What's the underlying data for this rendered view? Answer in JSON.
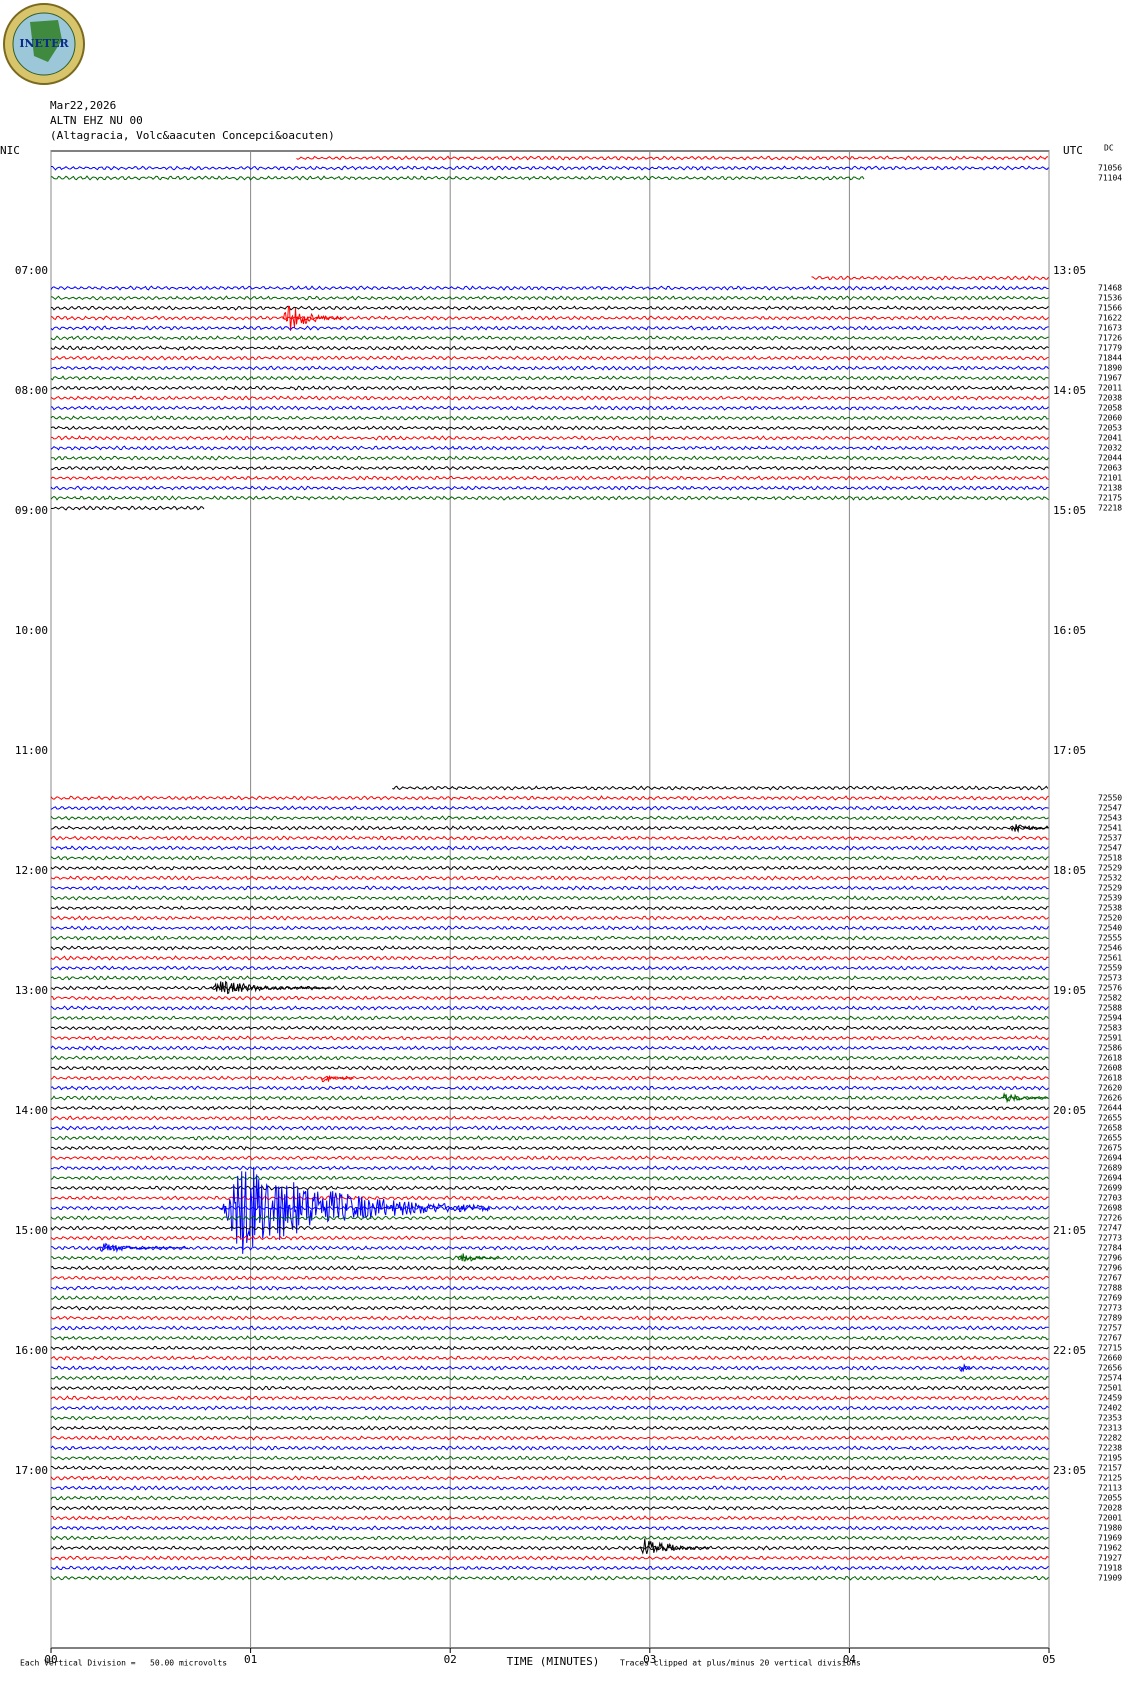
{
  "chart_data": {
    "type": "helicorder",
    "logo_text": "INETER",
    "date": "Mar22,2026",
    "station": "ALTN EHZ NU 00",
    "location": "(Altagracia, Volc&aacuten Concepci&oacuten)",
    "left_zone": "NIC",
    "right_zone": "UTC",
    "dc_header": "DC",
    "x_label": "TIME (MINUTES)",
    "scale_note": "Each Vertical Division =   50.00 microvolts",
    "clip_note": "Traces clipped at plus/minus 20 vertical divisions",
    "xlim": [
      0,
      5
    ],
    "xticks": [
      {
        "value": 0,
        "label": "00"
      },
      {
        "value": 1,
        "label": "01"
      },
      {
        "value": 2,
        "label": "02"
      },
      {
        "value": 3,
        "label": "03"
      },
      {
        "value": 4,
        "label": "04"
      },
      {
        "value": 5,
        "label": "05"
      }
    ],
    "grid": true,
    "colors": [
      "#ff0000",
      "#0000ff",
      "#006400",
      "#000000"
    ],
    "hours": [
      {
        "nic": "07:00",
        "utc": "13:05"
      },
      {
        "nic": "08:00",
        "utc": "14:05"
      },
      {
        "nic": "09:00",
        "utc": "15:05"
      },
      {
        "nic": "10:00",
        "utc": "16:05"
      },
      {
        "nic": "11:00",
        "utc": "17:05"
      },
      {
        "nic": "12:00",
        "utc": "18:05"
      },
      {
        "nic": "13:00",
        "utc": "19:05"
      },
      {
        "nic": "14:00",
        "utc": "20:05"
      },
      {
        "nic": "15:00",
        "utc": "21:05"
      },
      {
        "nic": "16:00",
        "utc": "22:05"
      },
      {
        "nic": "17:00",
        "utc": "23:05"
      }
    ],
    "traces": [
      {
        "xrange": [
          1.23,
          5
        ]
      },
      {
        "dc": 71056
      },
      {
        "dc": 71104,
        "xrange": [
          0,
          4.08
        ]
      },
      null,
      null,
      null,
      null,
      null,
      null,
      null,
      null,
      null,
      {
        "xrange": [
          3.81,
          5
        ]
      },
      {
        "dc": 71468
      },
      {
        "dc": 71536
      },
      {
        "dc": 71566
      },
      {
        "dc": 71622,
        "events": [
          {
            "start": 1.16,
            "end": 1.47,
            "amplitude": 1.5
          }
        ]
      },
      {
        "dc": 71673
      },
      {
        "dc": 71726
      },
      {
        "dc": 71779
      },
      {
        "dc": 71844
      },
      {
        "dc": 71890
      },
      {
        "dc": 71967
      },
      {
        "dc": 72011
      },
      {
        "dc": 72038
      },
      {
        "dc": 72058
      },
      {
        "dc": 72060
      },
      {
        "dc": 72053
      },
      {
        "dc": 72041
      },
      {
        "dc": 72032
      },
      {
        "dc": 72044
      },
      {
        "dc": 72063
      },
      {
        "dc": 72101
      },
      {
        "dc": 72138
      },
      {
        "dc": 72175
      },
      {
        "dc": 72218,
        "xrange": [
          0,
          0.77
        ]
      },
      null,
      null,
      null,
      null,
      null,
      null,
      null,
      null,
      null,
      null,
      null,
      null,
      null,
      null,
      null,
      null,
      null,
      null,
      null,
      null,
      null,
      null,
      null,
      null,
      null,
      null,
      null,
      {
        "xrange": [
          1.71,
          5
        ]
      },
      {
        "dc": 72550
      },
      {
        "dc": 72547
      },
      {
        "dc": 72543
      },
      {
        "dc": 72541,
        "events": [
          {
            "start": 4.81,
            "end": 5,
            "amplitude": 0.8
          }
        ]
      },
      {
        "dc": 72537
      },
      {
        "dc": 72547
      },
      {
        "dc": 72518
      },
      {
        "dc": 72529
      },
      {
        "dc": 72532
      },
      {
        "dc": 72529
      },
      {
        "dc": 72539
      },
      {
        "dc": 72538
      },
      {
        "dc": 72520
      },
      {
        "dc": 72540
      },
      {
        "dc": 72555
      },
      {
        "dc": 72546
      },
      {
        "dc": 72561
      },
      {
        "dc": 72559
      },
      {
        "dc": 72573
      },
      {
        "dc": 72576,
        "events": [
          {
            "start": 0.8,
            "end": 1.4,
            "amplitude": 0.8
          }
        ]
      },
      {
        "dc": 72582
      },
      {
        "dc": 72588
      },
      {
        "dc": 72594
      },
      {
        "dc": 72583
      },
      {
        "dc": 72591
      },
      {
        "dc": 72586
      },
      {
        "dc": 72618
      },
      {
        "dc": 72608
      },
      {
        "dc": 72618,
        "events": [
          {
            "start": 1.35,
            "end": 1.52,
            "amplitude": 0.6
          }
        ]
      },
      {
        "dc": 72620
      },
      {
        "dc": 72626,
        "events": [
          {
            "start": 4.76,
            "end": 5,
            "amplitude": 0.6
          }
        ]
      },
      {
        "dc": 72644
      },
      {
        "dc": 72655
      },
      {
        "dc": 72658
      },
      {
        "dc": 72655
      },
      {
        "dc": 72675
      },
      {
        "dc": 72694
      },
      {
        "dc": 72689
      },
      {
        "dc": 72694
      },
      {
        "dc": 72699
      },
      {
        "dc": 72703
      },
      {
        "dc": 72698,
        "events": [
          {
            "start": 0.85,
            "end": 2.2,
            "amplitude": 5
          }
        ]
      },
      {
        "dc": 72726
      },
      {
        "dc": 72747
      },
      {
        "dc": 72773
      },
      {
        "dc": 72784,
        "events": [
          {
            "start": 0.23,
            "end": 0.69,
            "amplitude": 0.5
          }
        ]
      },
      {
        "dc": 72796,
        "events": [
          {
            "start": 2.04,
            "end": 2.25,
            "amplitude": 0.6
          }
        ]
      },
      {
        "dc": 72796
      },
      {
        "dc": 72767
      },
      {
        "dc": 72788
      },
      {
        "dc": 72769
      },
      {
        "dc": 72773
      },
      {
        "dc": 72789
      },
      {
        "dc": 72757
      },
      {
        "dc": 72767
      },
      {
        "dc": 72715
      },
      {
        "dc": 72660
      },
      {
        "dc": 72656,
        "events": [
          {
            "start": 4.55,
            "end": 4.62,
            "amplitude": 1
          }
        ]
      },
      {
        "dc": 72574
      },
      {
        "dc": 72501
      },
      {
        "dc": 72459
      },
      {
        "dc": 72402
      },
      {
        "dc": 72353
      },
      {
        "dc": 72313
      },
      {
        "dc": 72282
      },
      {
        "dc": 72238
      },
      {
        "dc": 72195
      },
      {
        "dc": 72157
      },
      {
        "dc": 72125
      },
      {
        "dc": 72113
      },
      {
        "dc": 72055
      },
      {
        "dc": 72028
      },
      {
        "dc": 72001
      },
      {
        "dc": 71980
      },
      {
        "dc": 71969
      },
      {
        "dc": 71962,
        "events": [
          {
            "start": 2.95,
            "end": 3.3,
            "amplitude": 1.2
          }
        ]
      },
      {
        "dc": 71927
      },
      {
        "dc": 71918
      },
      {
        "dc": 71909
      }
    ]
  }
}
